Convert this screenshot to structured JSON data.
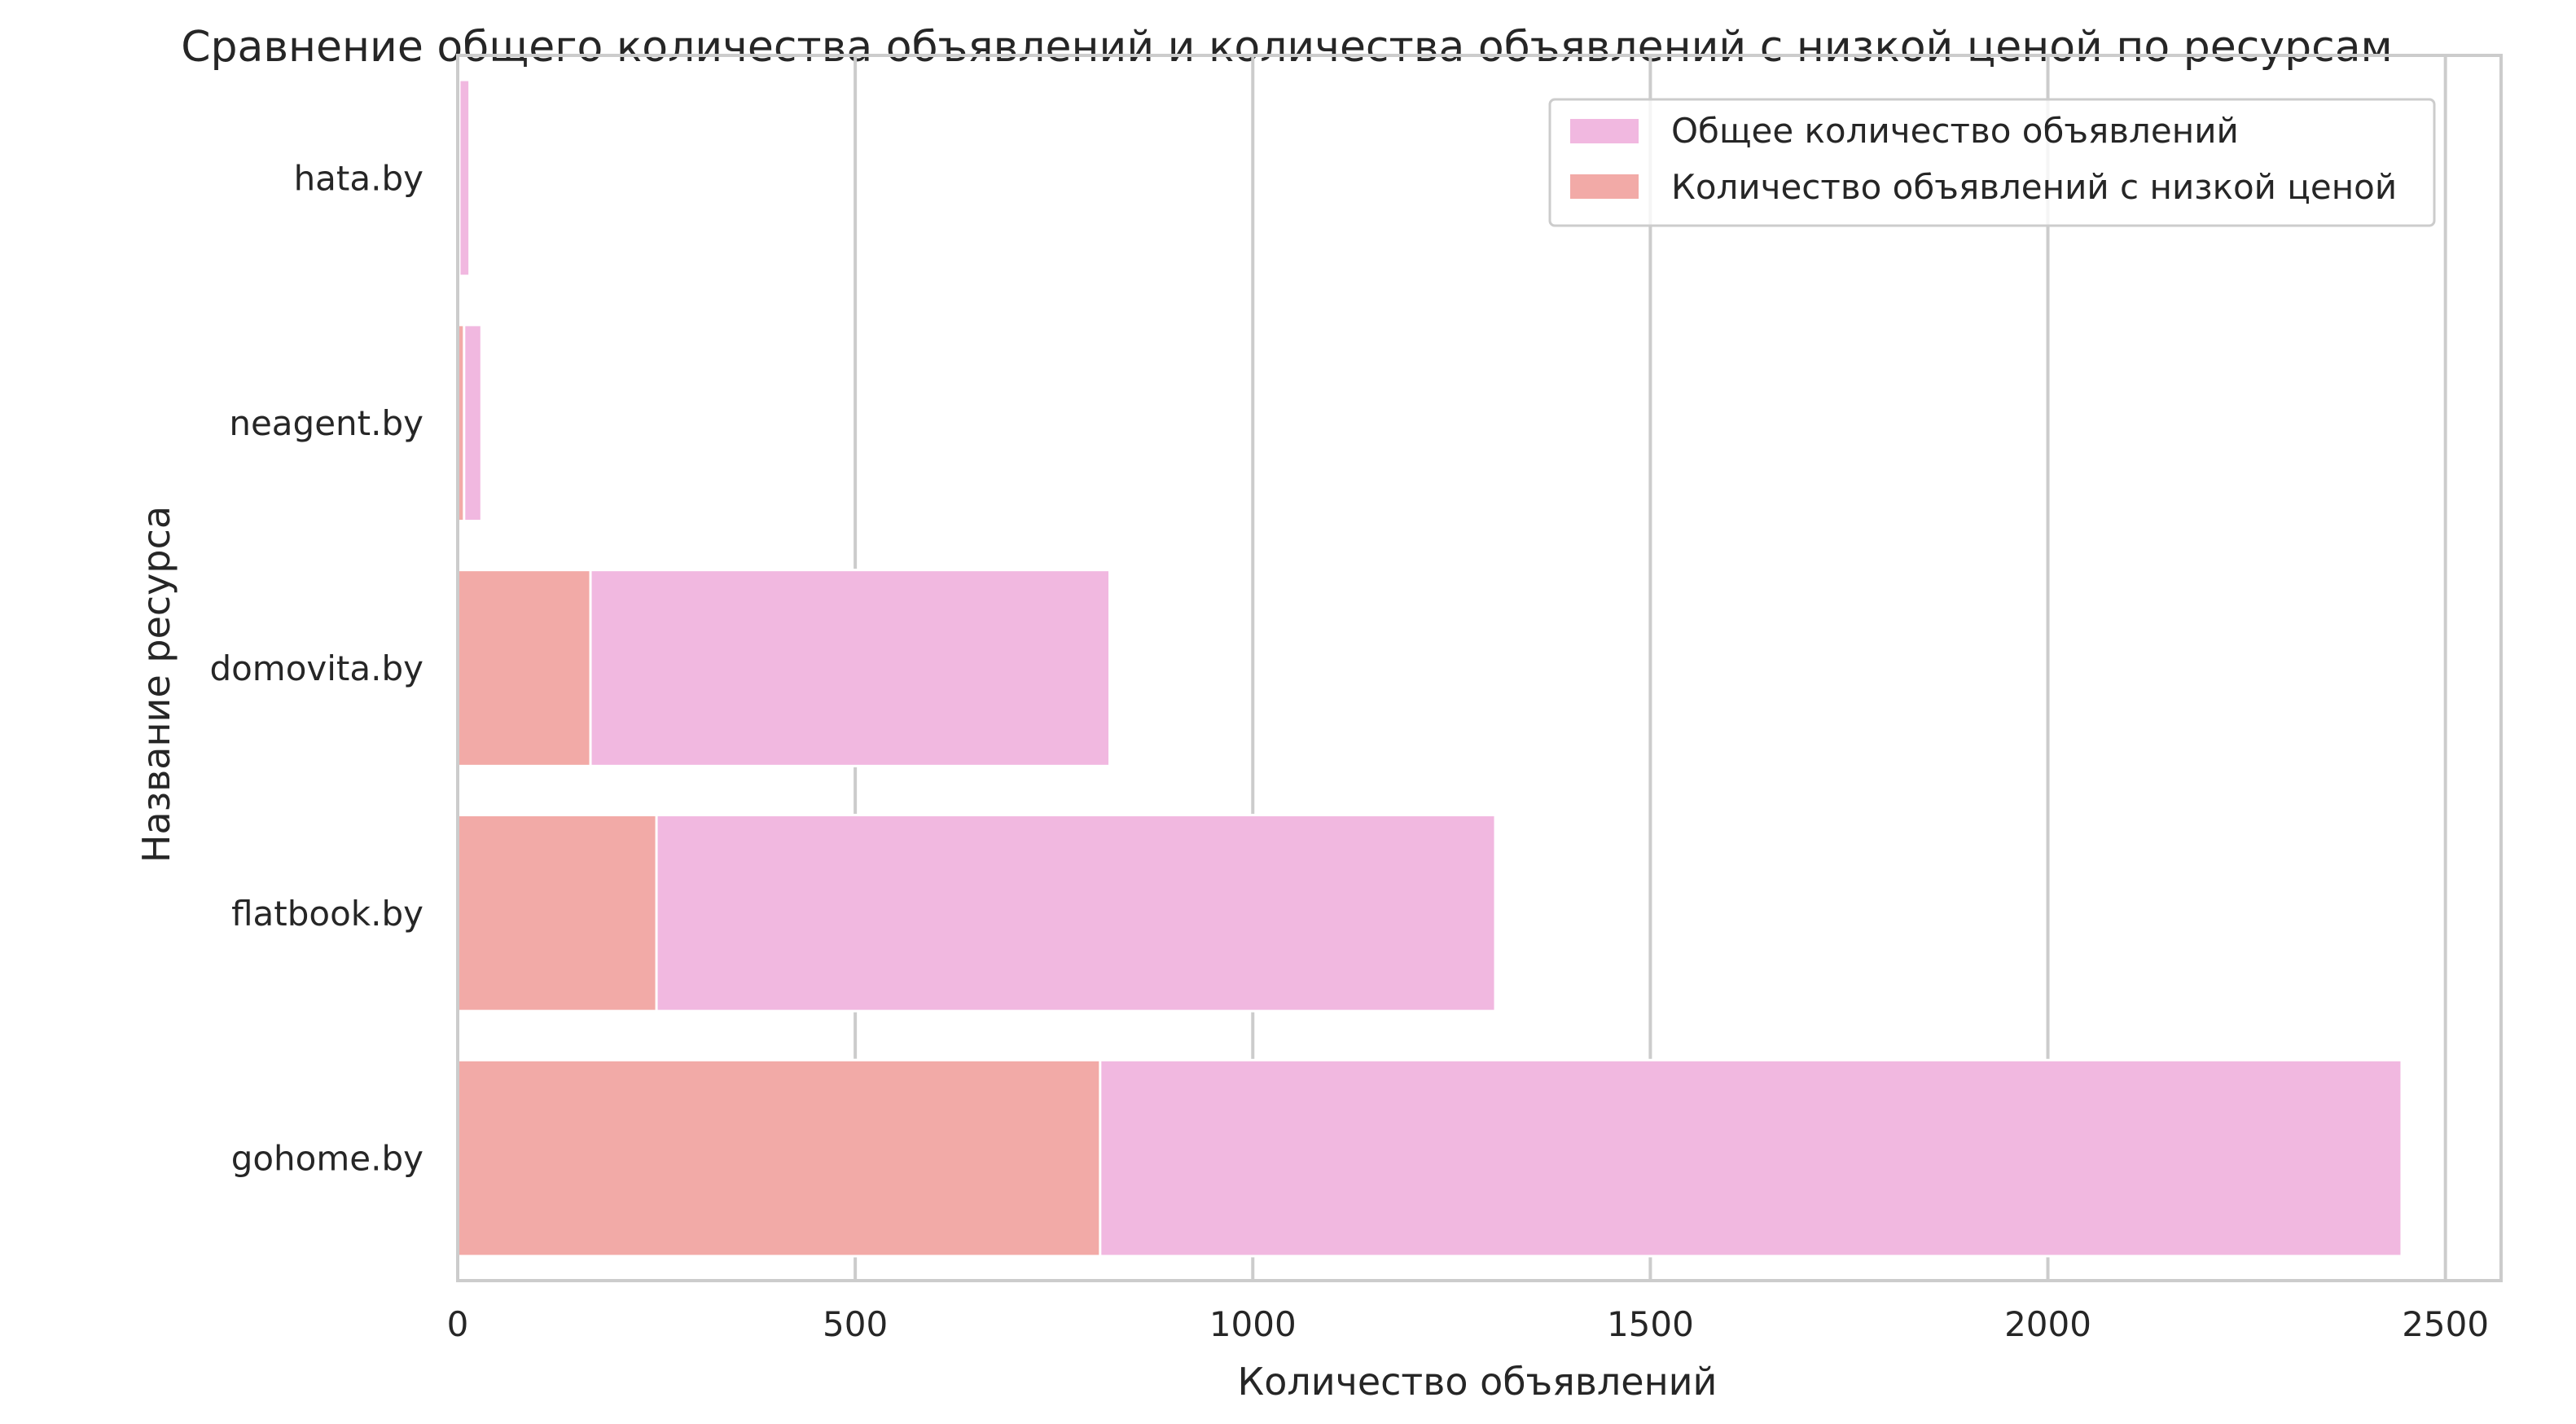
{
  "chart_data": {
    "type": "bar",
    "orientation": "horizontal",
    "stacking": "overlay",
    "title": "Сравнение общего количества объявлений и количества объявлений с низкой ценой по ресурсам",
    "xlabel": "Количество объявлений",
    "ylabel": "Название ресурса",
    "categories": [
      "hata.by",
      "neagent.by",
      "domovita.by",
      "flatbook.by",
      "gohome.by"
    ],
    "series": [
      {
        "name": "Общее количество объявлений",
        "values": [
          15,
          30,
          820,
          1305,
          2445
        ],
        "color": "#f1b8e0"
      },
      {
        "name": "Количество объявлений с низкой ценой",
        "values": [
          2,
          8,
          167,
          250,
          808
        ],
        "color": "#f2aaa7"
      }
    ],
    "xlim": [
      0,
      2570
    ],
    "xticks": [
      0,
      500,
      1000,
      1500,
      2000,
      2500
    ],
    "grid": true,
    "grid_axis": "x",
    "legend_position": "top-right"
  }
}
